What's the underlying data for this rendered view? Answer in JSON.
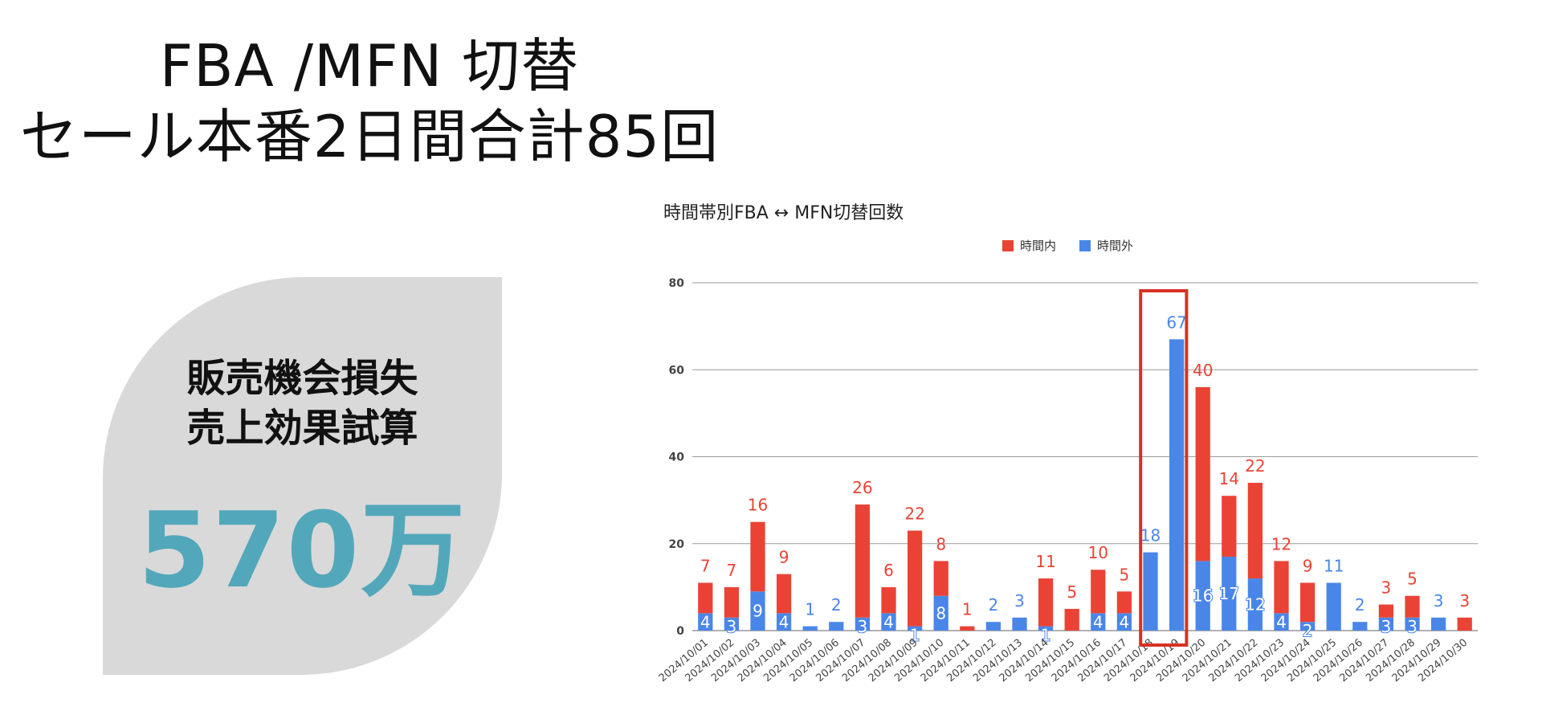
{
  "slide": {
    "title_line1": "FBA /MFN 切替",
    "title_line2": "セール本番2日間合計85回"
  },
  "card": {
    "heading_line1": "販売機会損失",
    "heading_line2": "売上効果試算",
    "value": "570万"
  },
  "colors": {
    "in_hours": "#ea4335",
    "out_hours": "#4a86e8",
    "highlight": "#d93025",
    "card_bg": "#d9d9d9",
    "card_value": "#52a8ba"
  },
  "chart_data": {
    "type": "bar",
    "stacked": true,
    "title": "時間帯別FBA ↔ MFN切替回数",
    "legend_position": "top",
    "categories": [
      "2024/10/01",
      "2024/10/02",
      "2024/10/03",
      "2024/10/04",
      "2024/10/05",
      "2024/10/06",
      "2024/10/07",
      "2024/10/08",
      "2024/10/09",
      "2024/10/10",
      "2024/10/11",
      "2024/10/12",
      "2024/10/13",
      "2024/10/14",
      "2024/10/15",
      "2024/10/16",
      "2024/10/17",
      "2024/10/18",
      "2024/10/19",
      "2024/10/20",
      "2024/10/21",
      "2024/10/22",
      "2024/10/23",
      "2024/10/24",
      "2024/10/25",
      "2024/10/26",
      "2024/10/27",
      "2024/10/28",
      "2024/10/29",
      "2024/10/30"
    ],
    "series": [
      {
        "name": "時間外",
        "values": [
          4,
          3,
          9,
          4,
          1,
          2,
          3,
          4,
          1,
          8,
          0,
          2,
          3,
          1,
          0,
          4,
          4,
          18,
          67,
          16,
          17,
          12,
          4,
          2,
          11,
          2,
          3,
          3,
          3,
          0
        ]
      },
      {
        "name": "時間内",
        "values": [
          7,
          7,
          16,
          9,
          0,
          0,
          26,
          6,
          22,
          8,
          1,
          0,
          0,
          11,
          5,
          10,
          5,
          0,
          0,
          40,
          14,
          22,
          12,
          9,
          0,
          0,
          3,
          5,
          0,
          3
        ]
      }
    ],
    "bar_heights_note_removed": true,
    "ylim": [
      0,
      80
    ],
    "yticks": [
      0,
      20,
      40,
      60,
      80
    ],
    "grid": true,
    "highlight_categories": [
      "2024/10/18",
      "2024/10/19"
    ]
  }
}
